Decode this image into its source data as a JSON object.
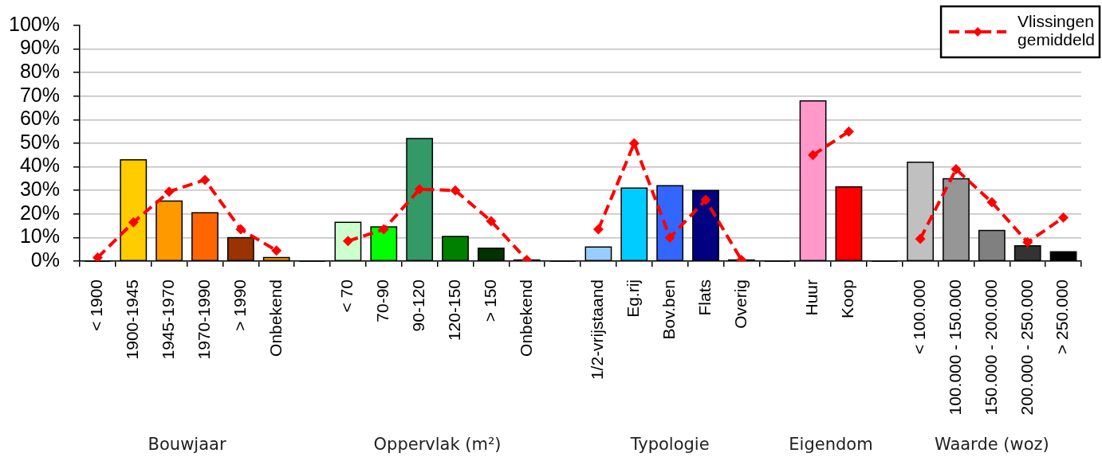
{
  "chart_data": {
    "type": "bar",
    "categories": [
      "< 1900",
      "1900-1945",
      "1945-1970",
      "1970-1990",
      "> 1990",
      "Onbekend",
      null,
      "< 70",
      "70-90",
      "90-120",
      "120-150",
      "> 150",
      "Onbekend",
      null,
      "1/2-vrijstaand",
      "Eg.rij",
      "Bov.ben",
      "Flats",
      "Overig",
      null,
      "Huur",
      "Koop",
      null,
      "< 100.000",
      "100.000 - 150.000",
      "150.000 - 200.000",
      "200.000 - 250.000",
      "> 250.000"
    ],
    "series": [
      {
        "colors": [
          "#ffcc00",
          "#ffcc00",
          "#ff9900",
          "#ff6600",
          "#993300",
          "#ff9900",
          "#ffffff",
          "#ccffcc",
          "#00ff00",
          "#339966",
          "#008000",
          "#003300",
          "#003300",
          "#ffffff",
          "#99ccff",
          "#00ccff",
          "#3366ff",
          "#000080",
          "#000080",
          "#ffffff",
          "#ff99cc",
          "#ff0000",
          "#ffffff",
          "#c0c0c0",
          "#969696",
          "#808080",
          "#333333",
          "#000000"
        ],
        "values": [
          null,
          43,
          25.5,
          20.5,
          10,
          1.5,
          null,
          16.5,
          14.5,
          52,
          10.5,
          5.5,
          0.5,
          null,
          6,
          31,
          32,
          30,
          0.5,
          null,
          68,
          31.5,
          null,
          42,
          35,
          13,
          6.5,
          4
        ]
      },
      {
        "type": "line",
        "name": "Vlissingen gemiddeld",
        "color": "#ff0000",
        "values": [
          1.5,
          16.5,
          29.5,
          34.5,
          13.5,
          4.5,
          null,
          8.5,
          13.5,
          30.5,
          30,
          17,
          0.5,
          null,
          13.5,
          50,
          10,
          26,
          0.5,
          null,
          45,
          55,
          null,
          9.5,
          39,
          25,
          8,
          18.5
        ]
      }
    ],
    "ylim": [
      0,
      100
    ],
    "yticks": [
      {
        "value": 0,
        "label": "0%"
      },
      {
        "value": 10,
        "label": "10%"
      },
      {
        "value": 20,
        "label": "20%"
      },
      {
        "value": 30,
        "label": "30%"
      },
      {
        "value": 40,
        "label": "40%"
      },
      {
        "value": 50,
        "label": "50%"
      },
      {
        "value": 60,
        "label": "60%"
      },
      {
        "value": 70,
        "label": "70%"
      },
      {
        "value": 80,
        "label": "80%"
      },
      {
        "value": 90,
        "label": "90%"
      },
      {
        "value": 100,
        "label": "100%"
      }
    ],
    "grid": "y",
    "legend": "top right",
    "marker": "diamond",
    "line_style": "dashed",
    "annotations": [
      "Bouwjaar",
      "Oppervlak (m²)",
      "Typologie",
      "Eigendom",
      "Waarde (woz)"
    ]
  }
}
